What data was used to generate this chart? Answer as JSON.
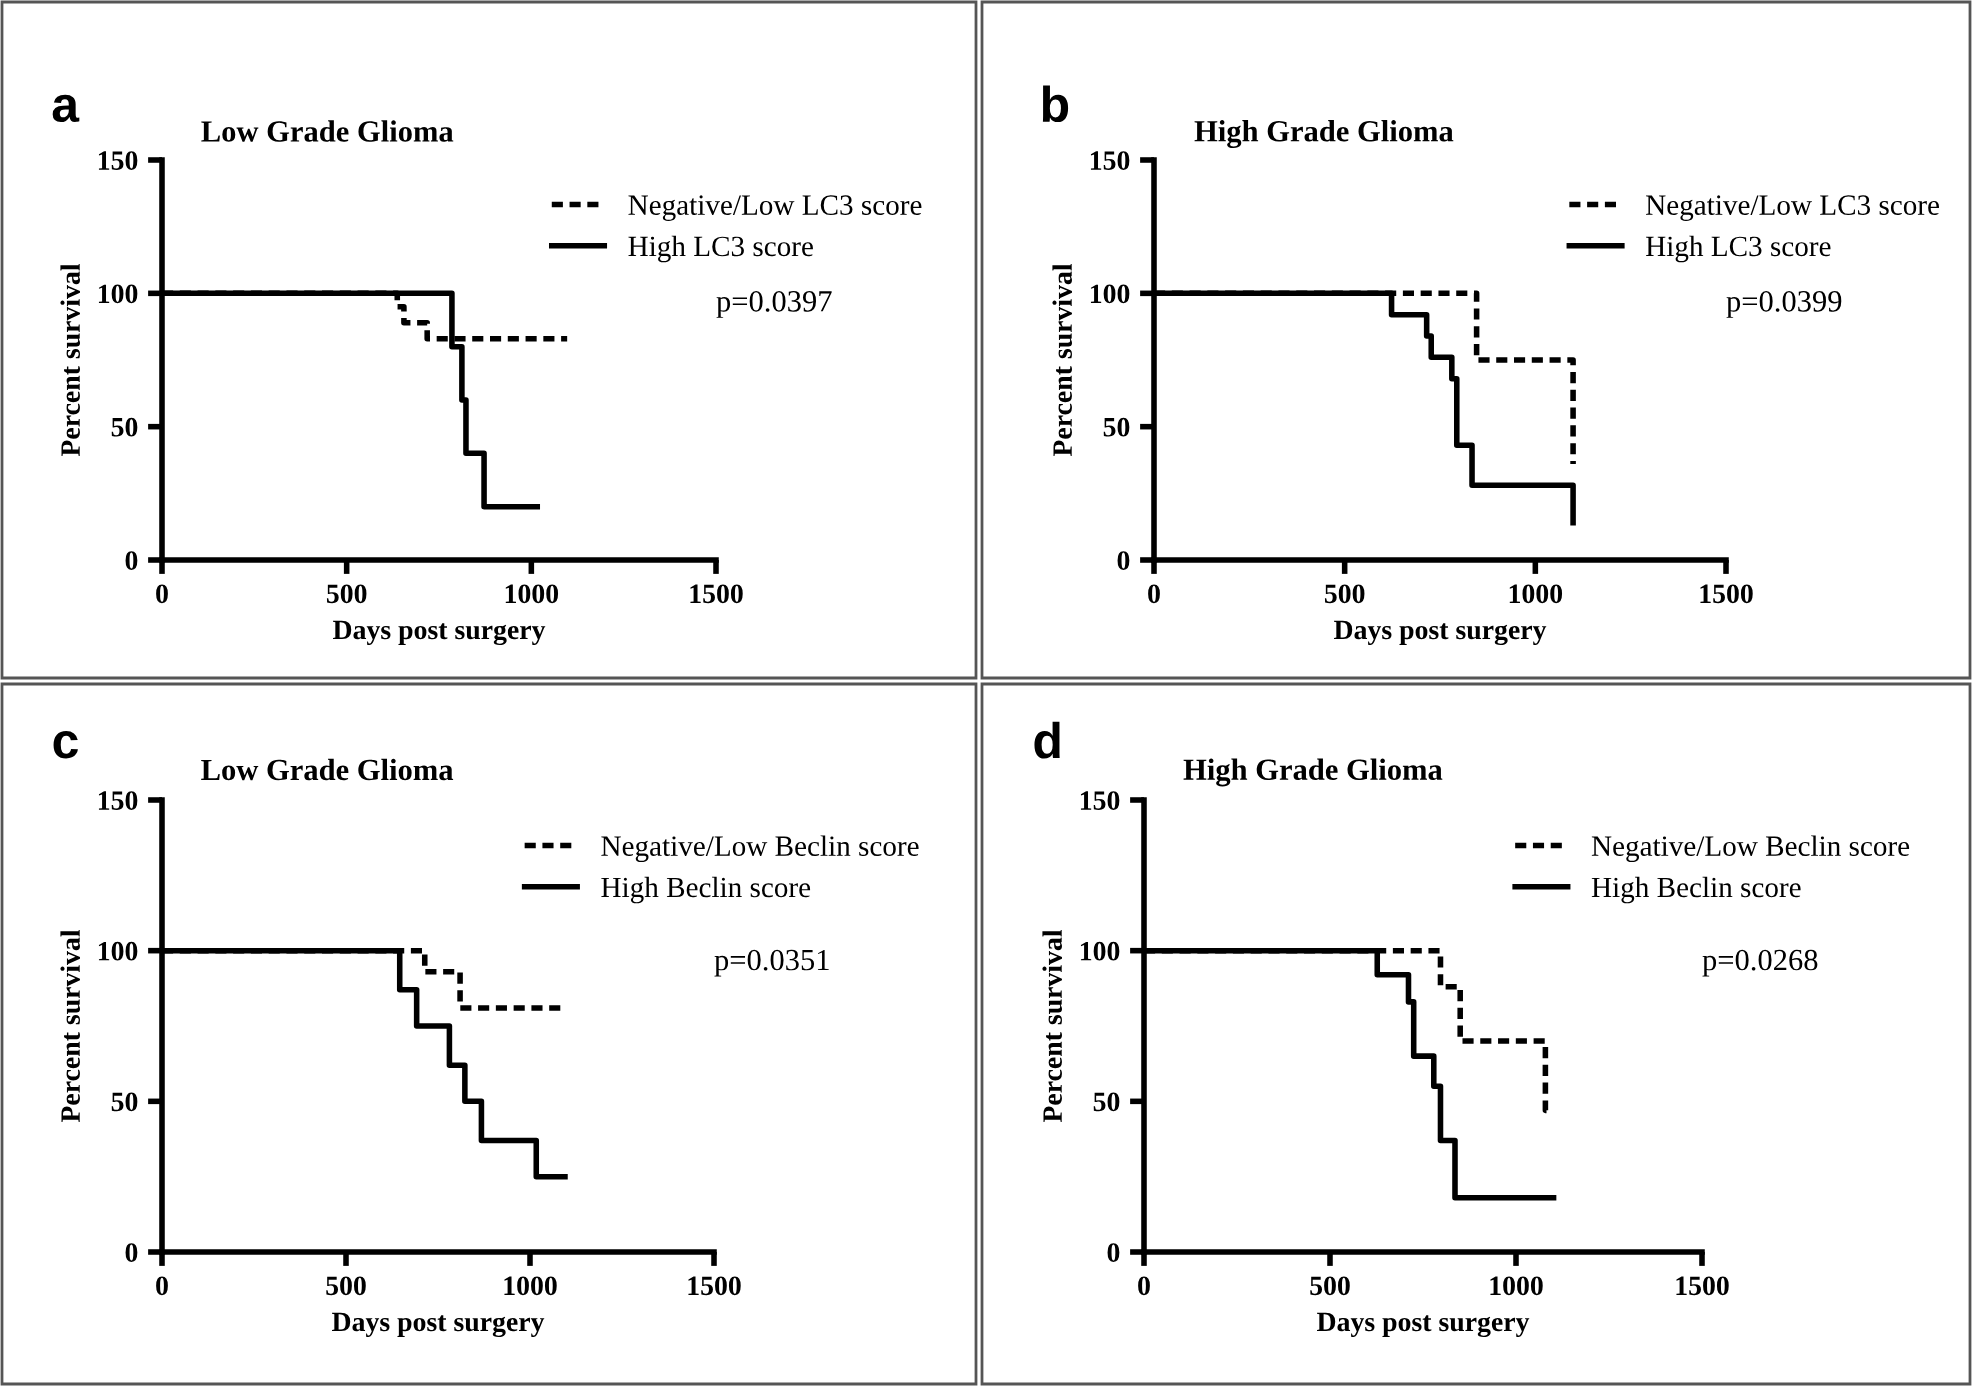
{
  "chart_data": [
    {
      "type": "step",
      "title": "Low Grade Glioma",
      "xlabel": "Days post surgery",
      "ylabel": "Percent survival",
      "annotations": [
        "a",
        "p=0.0397"
      ],
      "xlim": [
        0,
        1500
      ],
      "ylim": [
        0,
        150
      ],
      "xticks": [
        0,
        500,
        1000,
        1500
      ],
      "yticks": [
        0,
        50,
        100,
        150
      ],
      "grid": false,
      "legend": "top right",
      "series": [
        {
          "name": "Negative/Low LC3 score",
          "color": "#000000",
          "line_style": "dashed",
          "x": [
            0,
            637,
            655,
            718,
            1097
          ],
          "values": [
            100,
            95,
            89,
            83,
            83
          ]
        },
        {
          "name": "High LC3 score",
          "color": "#000000",
          "line_style": "solid",
          "x": [
            0,
            785,
            812,
            823,
            872,
            1016
          ],
          "values": [
            100,
            80,
            60,
            40,
            20,
            20
          ]
        }
      ]
    },
    {
      "type": "step",
      "title": "High Grade Glioma",
      "xlabel": "Days post surgery",
      "ylabel": "Percent survival",
      "annotations": [
        "b",
        "p=0.0399"
      ],
      "xlim": [
        0,
        1500
      ],
      "ylim": [
        0,
        150
      ],
      "xticks": [
        0,
        500,
        1000,
        1500
      ],
      "yticks": [
        0,
        50,
        100,
        150
      ],
      "grid": false,
      "legend": "top right",
      "series": [
        {
          "name": "Negative/Low LC3 score",
          "color": "#000000",
          "line_style": "dashed",
          "x": [
            0,
            846,
            1099
          ],
          "values": [
            100,
            75,
            36
          ]
        },
        {
          "name": "High LC3 score",
          "color": "#000000",
          "line_style": "solid",
          "x": [
            0,
            623,
            715,
            727,
            781,
            794,
            834,
            1099
          ],
          "values": [
            100,
            92,
            84,
            76,
            68,
            43,
            28,
            14
          ]
        }
      ]
    },
    {
      "type": "step",
      "title": "Low Grade Glioma",
      "xlabel": "Days post surgery",
      "ylabel": "Percent survival",
      "annotations": [
        "c",
        "p=0.0351"
      ],
      "xlim": [
        0,
        1500
      ],
      "ylim": [
        0,
        150
      ],
      "xticks": [
        0,
        500,
        1000,
        1500
      ],
      "yticks": [
        0,
        50,
        100,
        150
      ],
      "grid": false,
      "legend": "top right",
      "series": [
        {
          "name": "Negative/Low Beclin score",
          "color": "#000000",
          "line_style": "dashed",
          "x": [
            0,
            714,
            810,
            1095
          ],
          "values": [
            100,
            93,
            81,
            81
          ]
        },
        {
          "name": "High Beclin score",
          "color": "#000000",
          "line_style": "solid",
          "x": [
            0,
            646,
            692,
            781,
            823,
            868,
            1017,
            1095
          ],
          "values": [
            100,
            87,
            75,
            62,
            50,
            37,
            25,
            25
          ]
        }
      ]
    },
    {
      "type": "step",
      "title": "High Grade Glioma",
      "xlabel": "Days post surgery",
      "ylabel": "Percent survival",
      "annotations": [
        "d",
        "p=0.0268"
      ],
      "xlim": [
        0,
        1500
      ],
      "ylim": [
        0,
        150
      ],
      "xticks": [
        0,
        500,
        1000,
        1500
      ],
      "yticks": [
        0,
        50,
        100,
        150
      ],
      "grid": false,
      "legend": "top right",
      "series": [
        {
          "name": "Negative/Low Beclin score",
          "color": "#000000",
          "line_style": "dashed",
          "x": [
            0,
            797,
            850,
            1079,
            1095
          ],
          "values": [
            100,
            88,
            70,
            47,
            47
          ]
        },
        {
          "name": "High Beclin score",
          "color": "#000000",
          "line_style": "solid",
          "x": [
            0,
            627,
            711,
            725,
            779,
            797,
            836,
            1101
          ],
          "values": [
            100,
            92,
            83,
            65,
            55,
            37,
            18,
            18
          ]
        }
      ]
    }
  ]
}
